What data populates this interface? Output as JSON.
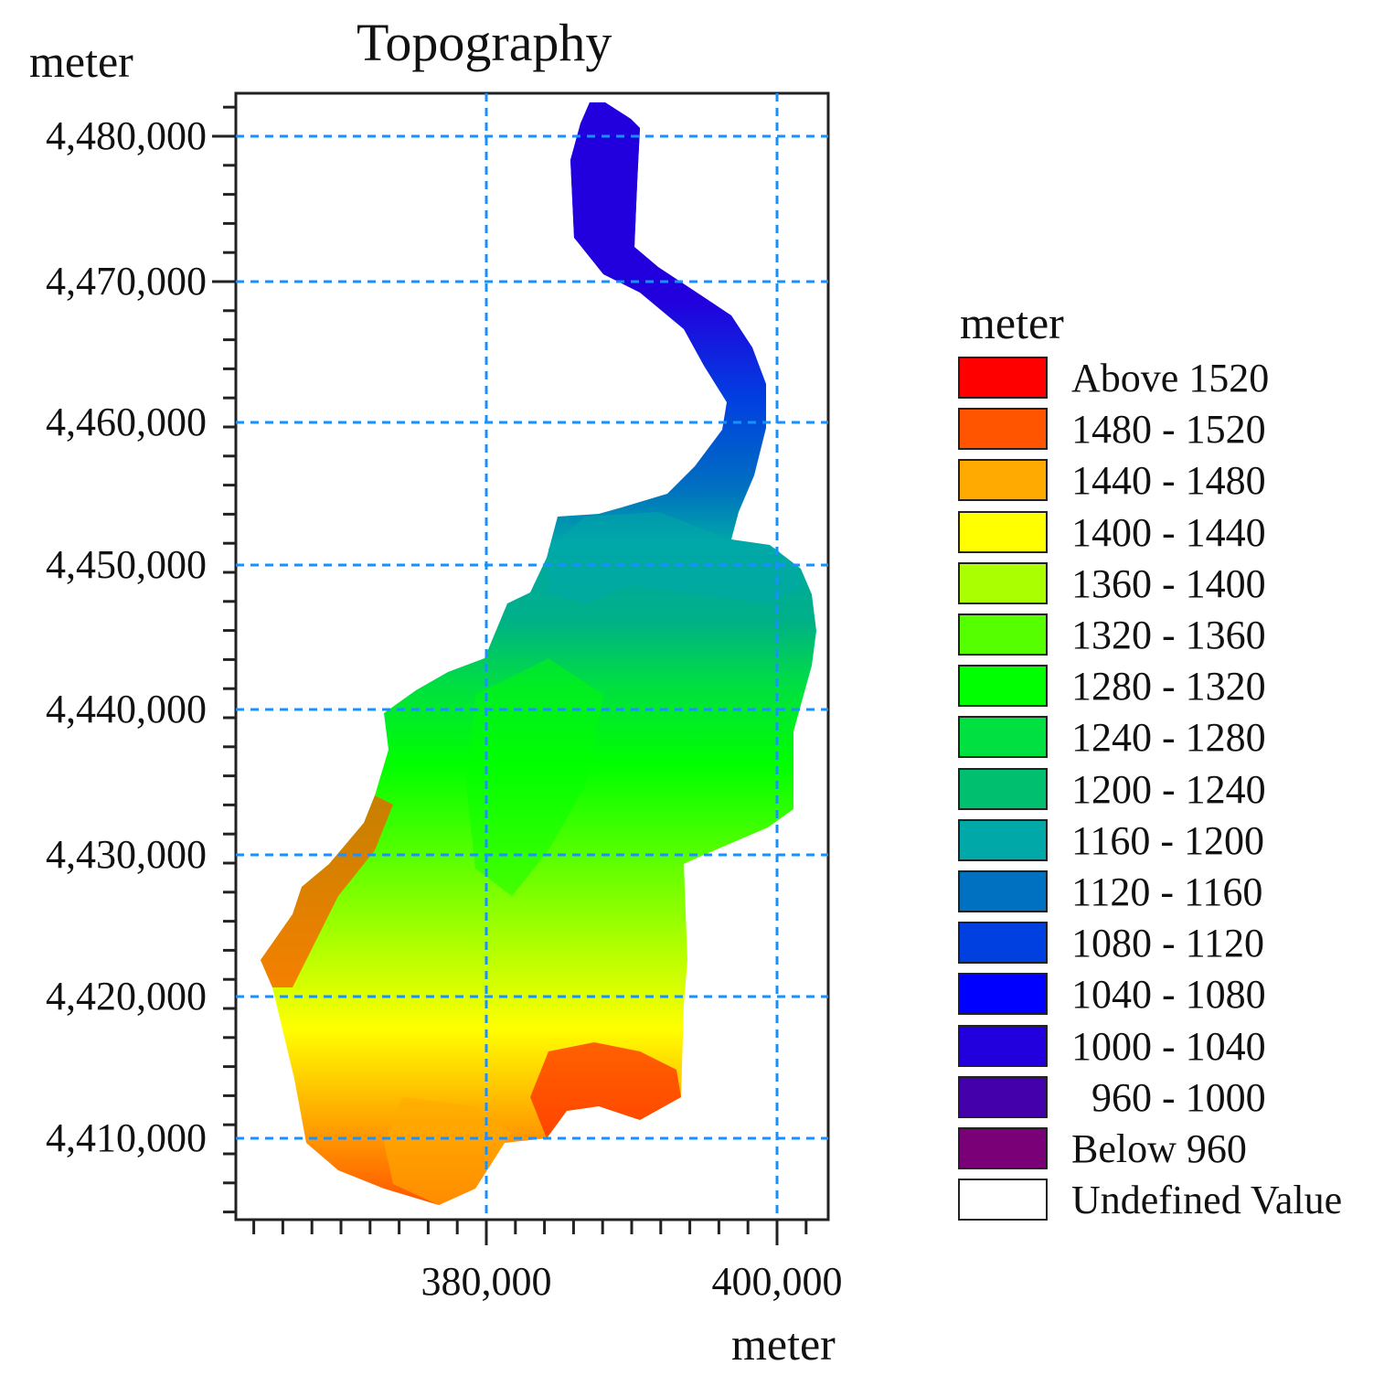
{
  "title": "Topography",
  "y_axis_unit": "meter",
  "x_axis_unit": "meter",
  "y_ticks": [
    "4,480,000",
    "4,470,000",
    "4,460,000",
    "4,450,000",
    "4,440,000",
    "4,430,000",
    "4,420,000",
    "4,410,000"
  ],
  "x_ticks": [
    "380,000",
    "400,000"
  ],
  "legend": {
    "title": "meter",
    "items": [
      {
        "label": "Above 1520",
        "color": "#ff0000"
      },
      {
        "label": "1480 - 1520",
        "color": "#ff5500"
      },
      {
        "label": "1440 - 1480",
        "color": "#ffaa00"
      },
      {
        "label": "1400 - 1440",
        "color": "#ffff00"
      },
      {
        "label": "1360 - 1400",
        "color": "#aaff00"
      },
      {
        "label": "1320 - 1360",
        "color": "#55ff00"
      },
      {
        "label": "1280 - 1320",
        "color": "#00ff00"
      },
      {
        "label": "1240 - 1280",
        "color": "#00e040"
      },
      {
        "label": "1200 - 1240",
        "color": "#00c070"
      },
      {
        "label": "1160 - 1200",
        "color": "#00a8a8"
      },
      {
        "label": "1120 - 1160",
        "color": "#0070c0"
      },
      {
        "label": "1080 - 1120",
        "color": "#0040e0"
      },
      {
        "label": "1040 - 1080",
        "color": "#0000ff"
      },
      {
        "label": "1000 - 1040",
        "color": "#2200dd"
      },
      {
        "label": "  960 - 1000",
        "color": "#4400aa"
      },
      {
        "label": "Below 960",
        "color": "#7a0077"
      },
      {
        "label": "Undefined Value",
        "color": "#ffffff"
      }
    ]
  }
}
